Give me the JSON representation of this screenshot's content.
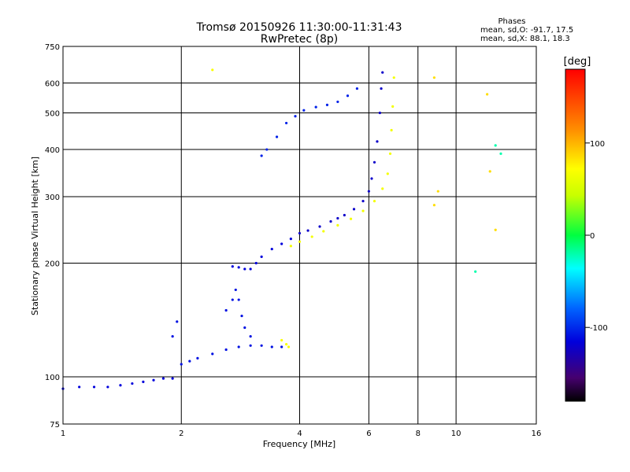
{
  "chart_data": {
    "type": "scatter",
    "title": "Tromsø 20150926 11:30:00-11:31:43",
    "subtitle": "RwPretec (8p)",
    "xlabel": "Frequency [MHz]",
    "ylabel": "Stationary phase Virtual Height [km]",
    "x_scale": "log",
    "y_scale": "log",
    "xlim": [
      1,
      16
    ],
    "ylim": [
      75,
      750
    ],
    "x_ticks": [
      {
        "value": 1,
        "label": "1"
      },
      {
        "value": 2,
        "label": "2"
      },
      {
        "value": 4,
        "label": "4"
      },
      {
        "value": 6,
        "label": "6"
      },
      {
        "value": 8,
        "label": "8"
      },
      {
        "value": 10,
        "label": "10"
      },
      {
        "value": 16,
        "label": "16"
      }
    ],
    "y_ticks": [
      {
        "value": 75,
        "label": "75"
      },
      {
        "value": 100,
        "label": "100"
      },
      {
        "value": 200,
        "label": "200"
      },
      {
        "value": 300,
        "label": "300"
      },
      {
        "value": 400,
        "label": "400"
      },
      {
        "value": 500,
        "label": "500"
      },
      {
        "value": 600,
        "label": "600"
      },
      {
        "value": 750,
        "label": "750"
      }
    ],
    "grid": true,
    "phase_stats": {
      "heading": "Phases",
      "o_mode": "mean, sd,O: -91.7, 17.5",
      "x_mode": "mean, sd,X:  88.1, 18.3"
    },
    "colorbar": {
      "label": "[deg]",
      "range": [
        -180,
        180
      ],
      "ticks": [
        {
          "value": 100,
          "label": "100"
        },
        {
          "value": 0,
          "label": "0"
        },
        {
          "value": -100,
          "label": "-100"
        }
      ]
    },
    "series": [
      {
        "phase": -100,
        "points": [
          [
            1.0,
            93
          ],
          [
            1.1,
            94
          ],
          [
            1.2,
            94
          ],
          [
            1.3,
            94
          ],
          [
            1.4,
            95
          ],
          [
            1.5,
            96
          ],
          [
            1.6,
            97
          ],
          [
            1.7,
            98
          ],
          [
            1.8,
            99
          ],
          [
            1.9,
            99
          ]
        ]
      },
      {
        "phase": -95,
        "points": [
          [
            2.0,
            108
          ],
          [
            2.1,
            110
          ],
          [
            2.2,
            112
          ],
          [
            2.4,
            115
          ],
          [
            2.6,
            118
          ],
          [
            2.8,
            120
          ],
          [
            3.0,
            121
          ],
          [
            3.2,
            121
          ],
          [
            3.4,
            120
          ],
          [
            3.6,
            120
          ]
        ]
      },
      {
        "phase": -95,
        "points": [
          [
            2.6,
            150
          ],
          [
            2.7,
            160
          ],
          [
            2.75,
            170
          ],
          [
            2.8,
            160
          ],
          [
            2.85,
            145
          ],
          [
            2.9,
            135
          ],
          [
            3.0,
            128
          ],
          [
            1.9,
            128
          ],
          [
            1.95,
            140
          ]
        ]
      },
      {
        "phase": -100,
        "points": [
          [
            2.7,
            196
          ],
          [
            2.8,
            195
          ],
          [
            2.9,
            193
          ],
          [
            3.0,
            193
          ],
          [
            3.1,
            200
          ],
          [
            3.2,
            208
          ],
          [
            3.4,
            218
          ],
          [
            3.6,
            225
          ],
          [
            3.8,
            232
          ]
        ]
      },
      {
        "phase": -105,
        "points": [
          [
            4.0,
            240
          ],
          [
            4.2,
            244
          ],
          [
            4.5,
            250
          ],
          [
            4.8,
            258
          ],
          [
            5.0,
            263
          ],
          [
            5.2,
            268
          ],
          [
            5.5,
            278
          ],
          [
            5.8,
            292
          ],
          [
            6.0,
            310
          ],
          [
            6.1,
            335
          ],
          [
            6.2,
            370
          ],
          [
            6.3,
            420
          ],
          [
            6.4,
            500
          ],
          [
            6.45,
            580
          ],
          [
            6.5,
            640
          ]
        ]
      },
      {
        "phase": -90,
        "points": [
          [
            3.2,
            385
          ],
          [
            3.3,
            400
          ],
          [
            3.5,
            432
          ],
          [
            3.7,
            470
          ],
          [
            3.9,
            490
          ],
          [
            4.1,
            508
          ],
          [
            4.4,
            518
          ],
          [
            4.7,
            525
          ],
          [
            5.0,
            535
          ],
          [
            5.3,
            555
          ],
          [
            5.6,
            580
          ]
        ]
      },
      {
        "phase": 90,
        "points": [
          [
            3.8,
            222
          ],
          [
            4.0,
            228
          ],
          [
            4.3,
            235
          ],
          [
            4.6,
            243
          ],
          [
            5.0,
            252
          ],
          [
            5.4,
            262
          ],
          [
            5.8,
            275
          ],
          [
            6.2,
            292
          ],
          [
            6.5,
            315
          ],
          [
            6.7,
            345
          ],
          [
            6.8,
            390
          ],
          [
            6.85,
            450
          ],
          [
            6.9,
            520
          ],
          [
            6.95,
            620
          ]
        ]
      },
      {
        "phase": 95,
        "points": [
          [
            3.6,
            125
          ],
          [
            3.7,
            122
          ],
          [
            3.75,
            120
          ],
          [
            2.4,
            650
          ]
        ]
      },
      {
        "phase": 110,
        "points": [
          [
            8.8,
            620
          ],
          [
            9.0,
            310
          ],
          [
            8.8,
            285
          ],
          [
            12.0,
            560
          ],
          [
            12.6,
            245
          ],
          [
            12.2,
            350
          ]
        ]
      },
      {
        "phase": -20,
        "points": [
          [
            11.2,
            190
          ],
          [
            12.6,
            410
          ],
          [
            13.0,
            390
          ]
        ]
      }
    ]
  }
}
